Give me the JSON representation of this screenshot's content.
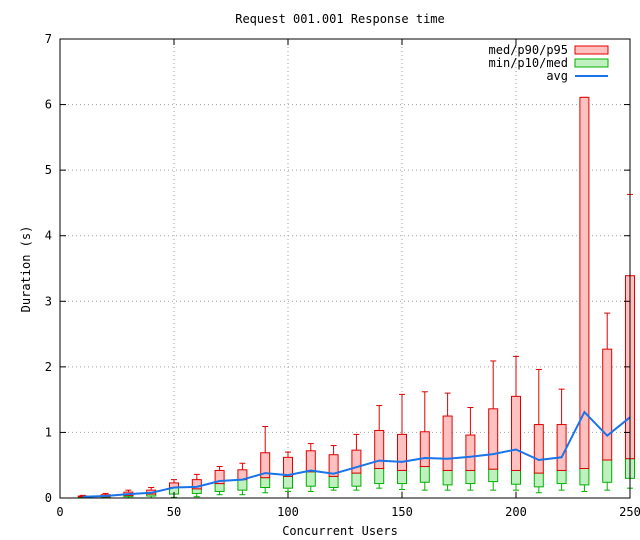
{
  "chart_data": {
    "type": "box",
    "title": "Request 001.001 Response time",
    "xlabel": "Concurrent Users",
    "ylabel": "Duration (s)",
    "xlim": [
      0,
      250
    ],
    "ylim": [
      0,
      7
    ],
    "xticks": [
      0,
      50,
      100,
      150,
      200,
      250
    ],
    "yticks": [
      0,
      1,
      2,
      3,
      4,
      5,
      6,
      7
    ],
    "grid": true,
    "legend_position": "top-right",
    "colors": {
      "upper_fill": "#ffc0c0",
      "upper_stroke": "#e00000",
      "lower_fill": "#c0f0c0",
      "lower_stroke": "#00b000",
      "avg_line": "#1874e8",
      "grid": "#a0a0a0",
      "axis": "#000000"
    },
    "legend": [
      {
        "label": "med/p90/p95",
        "kind": "upper-box"
      },
      {
        "label": "min/p10/med",
        "kind": "lower-box"
      },
      {
        "label": "avg",
        "kind": "line"
      }
    ],
    "series": [
      {
        "x": 10,
        "min": 0.0,
        "p10": 0.01,
        "med": 0.02,
        "p90": 0.03,
        "p95": 0.04,
        "avg": 0.02
      },
      {
        "x": 20,
        "min": 0.0,
        "p10": 0.01,
        "med": 0.02,
        "p90": 0.05,
        "p95": 0.07,
        "avg": 0.03
      },
      {
        "x": 30,
        "min": 0.0,
        "p10": 0.02,
        "med": 0.04,
        "p90": 0.09,
        "p95": 0.12,
        "avg": 0.06
      },
      {
        "x": 40,
        "min": 0.0,
        "p10": 0.03,
        "med": 0.06,
        "p90": 0.12,
        "p95": 0.16,
        "avg": 0.08
      },
      {
        "x": 50,
        "min": 0.01,
        "p10": 0.06,
        "med": 0.16,
        "p90": 0.23,
        "p95": 0.28,
        "avg": 0.16
      },
      {
        "x": 60,
        "min": 0.02,
        "p10": 0.07,
        "med": 0.14,
        "p90": 0.28,
        "p95": 0.36,
        "avg": 0.17
      },
      {
        "x": 70,
        "min": 0.05,
        "p10": 0.1,
        "med": 0.22,
        "p90": 0.42,
        "p95": 0.48,
        "avg": 0.26
      },
      {
        "x": 80,
        "min": 0.05,
        "p10": 0.12,
        "med": 0.28,
        "p90": 0.43,
        "p95": 0.53,
        "avg": 0.28
      },
      {
        "x": 90,
        "min": 0.08,
        "p10": 0.16,
        "med": 0.31,
        "p90": 0.69,
        "p95": 1.09,
        "avg": 0.38
      },
      {
        "x": 100,
        "min": 0.1,
        "p10": 0.15,
        "med": 0.33,
        "p90": 0.62,
        "p95": 0.7,
        "avg": 0.35
      },
      {
        "x": 110,
        "min": 0.1,
        "p10": 0.18,
        "med": 0.4,
        "p90": 0.72,
        "p95": 0.83,
        "avg": 0.42
      },
      {
        "x": 120,
        "min": 0.12,
        "p10": 0.16,
        "med": 0.33,
        "p90": 0.66,
        "p95": 0.8,
        "avg": 0.37
      },
      {
        "x": 130,
        "min": 0.12,
        "p10": 0.18,
        "med": 0.38,
        "p90": 0.73,
        "p95": 0.97,
        "avg": 0.47
      },
      {
        "x": 140,
        "min": 0.15,
        "p10": 0.22,
        "med": 0.45,
        "p90": 1.03,
        "p95": 1.41,
        "avg": 0.57
      },
      {
        "x": 150,
        "min": 0.13,
        "p10": 0.22,
        "med": 0.42,
        "p90": 0.97,
        "p95": 1.58,
        "avg": 0.55
      },
      {
        "x": 160,
        "min": 0.12,
        "p10": 0.24,
        "med": 0.48,
        "p90": 1.01,
        "p95": 1.62,
        "avg": 0.61
      },
      {
        "x": 170,
        "min": 0.12,
        "p10": 0.2,
        "med": 0.42,
        "p90": 1.25,
        "p95": 1.6,
        "avg": 0.6
      },
      {
        "x": 180,
        "min": 0.12,
        "p10": 0.22,
        "med": 0.42,
        "p90": 0.96,
        "p95": 1.38,
        "avg": 0.63
      },
      {
        "x": 190,
        "min": 0.12,
        "p10": 0.25,
        "med": 0.44,
        "p90": 1.36,
        "p95": 2.09,
        "avg": 0.67
      },
      {
        "x": 200,
        "min": 0.12,
        "p10": 0.21,
        "med": 0.42,
        "p90": 1.55,
        "p95": 2.16,
        "avg": 0.74
      },
      {
        "x": 210,
        "min": 0.08,
        "p10": 0.17,
        "med": 0.38,
        "p90": 1.12,
        "p95": 1.96,
        "avg": 0.58
      },
      {
        "x": 220,
        "min": 0.12,
        "p10": 0.22,
        "med": 0.42,
        "p90": 1.12,
        "p95": 1.66,
        "avg": 0.62
      },
      {
        "x": 230,
        "min": 0.1,
        "p10": 0.2,
        "med": 0.45,
        "p90": 6.11,
        "p95": 6.11,
        "avg": 1.31
      },
      {
        "x": 240,
        "min": 0.12,
        "p10": 0.24,
        "med": 0.58,
        "p90": 2.27,
        "p95": 2.82,
        "avg": 0.95
      },
      {
        "x": 250,
        "min": 0.15,
        "p10": 0.3,
        "med": 0.6,
        "p90": 3.39,
        "p95": 4.63,
        "avg": 1.23
      }
    ]
  }
}
